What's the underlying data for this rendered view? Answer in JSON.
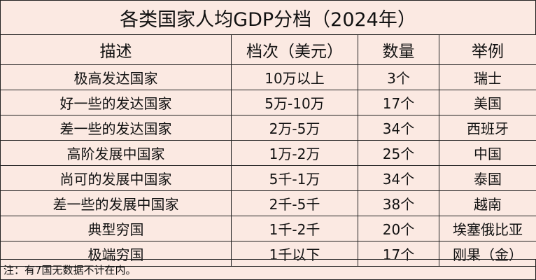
{
  "title": "各类国家人均GDP分档（2024年）",
  "headers": {
    "description": "描述",
    "bracket": "档次（美元）",
    "count": "数量",
    "example": "举例"
  },
  "rows": [
    {
      "description": "极高发达国家",
      "bracket": "10万以上",
      "count": "3个",
      "example": "瑞士"
    },
    {
      "description": "好一些的发达国家",
      "bracket": "5万-10万",
      "count": "17个",
      "example": "美国"
    },
    {
      "description": "差一些的发达国家",
      "bracket": "2万-5万",
      "count": "34个",
      "example": "西班牙"
    },
    {
      "description": "高阶发展中国家",
      "bracket": "1万-2万",
      "count": "25个",
      "example": "中国"
    },
    {
      "description": "尚可的发展中国家",
      "bracket": "5千-1万",
      "count": "34个",
      "example": "泰国"
    },
    {
      "description": "差一些的发展中国家",
      "bracket": "2千-5千",
      "count": "38个",
      "example": "越南"
    },
    {
      "description": "典型穷国",
      "bracket": "1千-2千",
      "count": "20个",
      "example": "埃塞俄比亚"
    },
    {
      "description": "极端穷国",
      "bracket": "1千以下",
      "count": "17个",
      "example": "刚果（金）"
    }
  ],
  "note": "注：有7国无数据不计在内。",
  "colors": {
    "background": "#fbe9e2",
    "border": "#222222",
    "text": "#111111"
  }
}
